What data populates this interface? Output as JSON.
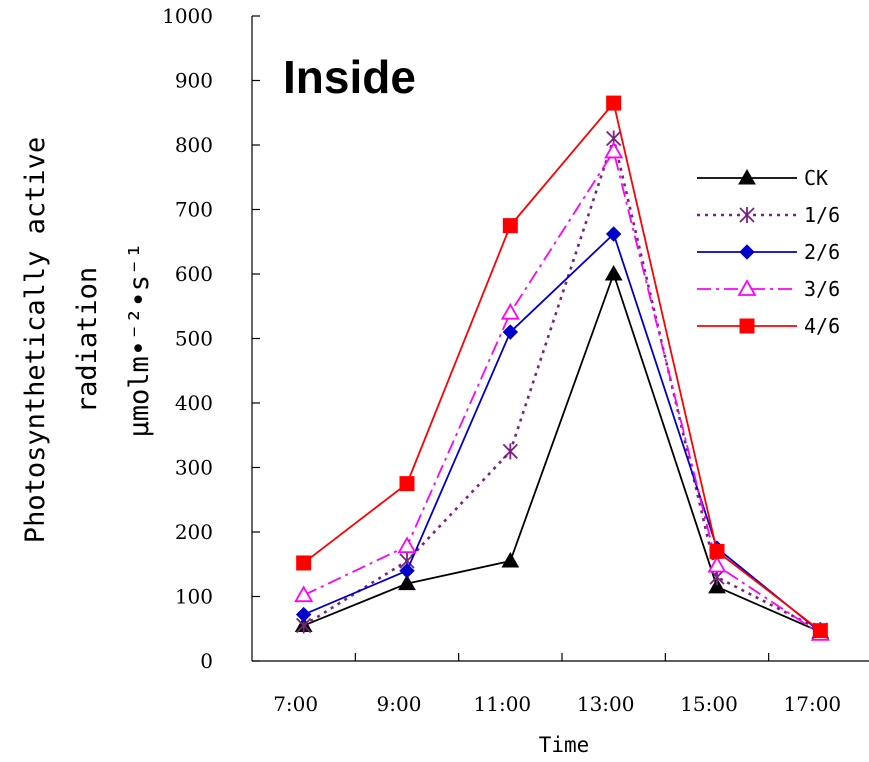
{
  "chart_data": {
    "type": "line",
    "title": "Inside",
    "xlabel": "Time",
    "ylabel_lines": [
      "Photosynthetically active",
      "radiation",
      "μmolm•⁻²•s⁻¹"
    ],
    "categories": [
      "7:00",
      "9:00",
      "11:00",
      "13:00",
      "15:00",
      "17:00"
    ],
    "x_positions": [
      6.6,
      8.6,
      10.6,
      12.6,
      14.6,
      16.6
    ],
    "ylim": [
      0,
      1000
    ],
    "yticks": [
      0,
      100,
      200,
      300,
      400,
      500,
      600,
      700,
      800,
      900,
      1000
    ],
    "grid": false,
    "legend_position": "right",
    "series": [
      {
        "name": "CK",
        "values": [
          55,
          120,
          155,
          600,
          115,
          45
        ],
        "color": "#000000",
        "dash": "none",
        "marker": "triangle-filled"
      },
      {
        "name": "1/6",
        "values": [
          55,
          155,
          325,
          810,
          130,
          48
        ],
        "color": "#7B2182",
        "dash": "dotted",
        "marker": "asterisk"
      },
      {
        "name": "2/6",
        "values": [
          72,
          140,
          510,
          662,
          175,
          45
        ],
        "color": "#0000CC",
        "dash": "none",
        "marker": "diamond"
      },
      {
        "name": "3/6",
        "values": [
          102,
          178,
          540,
          790,
          148,
          42
        ],
        "color": "#FF00FF",
        "dash": "dashdot",
        "marker": "triangle-open"
      },
      {
        "name": "4/6",
        "values": [
          152,
          275,
          675,
          865,
          170,
          47
        ],
        "color": "#FF0000",
        "dash": "none",
        "marker": "square"
      }
    ]
  }
}
